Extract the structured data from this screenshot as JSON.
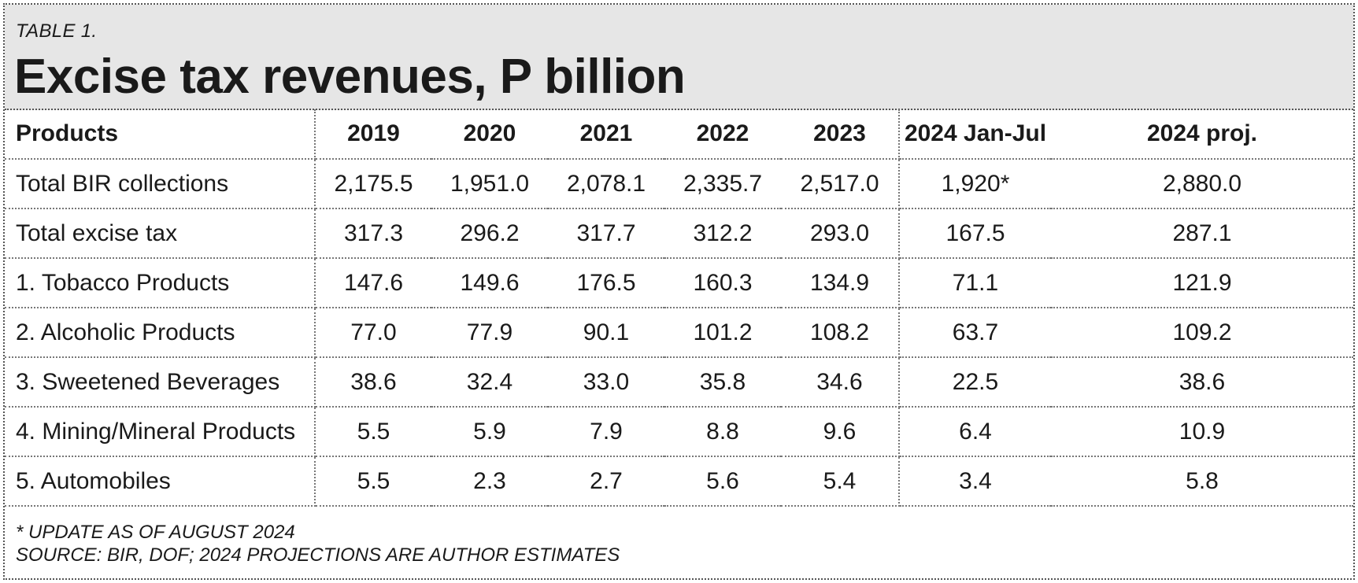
{
  "label": "TABLE 1.",
  "title": "Excise tax revenues, P billion",
  "footnotes": [
    "* UPDATE AS OF AUGUST 2024",
    "SOURCE: BIR, DOF; 2024 PROJECTIONS ARE AUTHOR ESTIMATES"
  ],
  "chart_data": {
    "type": "table",
    "title": "Excise tax revenues, P billion",
    "columns": [
      "Products",
      "2019",
      "2020",
      "2021",
      "2022",
      "2023",
      "2024 Jan-Jul",
      "2024 proj."
    ],
    "rows": [
      [
        "Total BIR collections",
        "2,175.5",
        "1,951.0",
        "2,078.1",
        "2,335.7",
        "2,517.0",
        "1,920*",
        "2,880.0"
      ],
      [
        "Total excise tax",
        "317.3",
        "296.2",
        "317.7",
        "312.2",
        "293.0",
        "167.5",
        "287.1"
      ],
      [
        "1. Tobacco Products",
        "147.6",
        "149.6",
        "176.5",
        "160.3",
        "134.9",
        "71.1",
        "121.9"
      ],
      [
        "2. Alcoholic Products",
        "77.0",
        "77.9",
        "90.1",
        "101.2",
        "108.2",
        "63.7",
        "109.2"
      ],
      [
        "3. Sweetened Beverages",
        "38.6",
        "32.4",
        "33.0",
        "35.8",
        "34.6",
        "22.5",
        "38.6"
      ],
      [
        "4. Mining/Mineral Products",
        "5.5",
        "5.9",
        "7.9",
        "8.8",
        "9.6",
        "6.4",
        "10.9"
      ],
      [
        "5. Automobiles",
        "5.5",
        "2.3",
        "2.7",
        "5.6",
        "5.4",
        "3.4",
        "5.8"
      ]
    ]
  }
}
